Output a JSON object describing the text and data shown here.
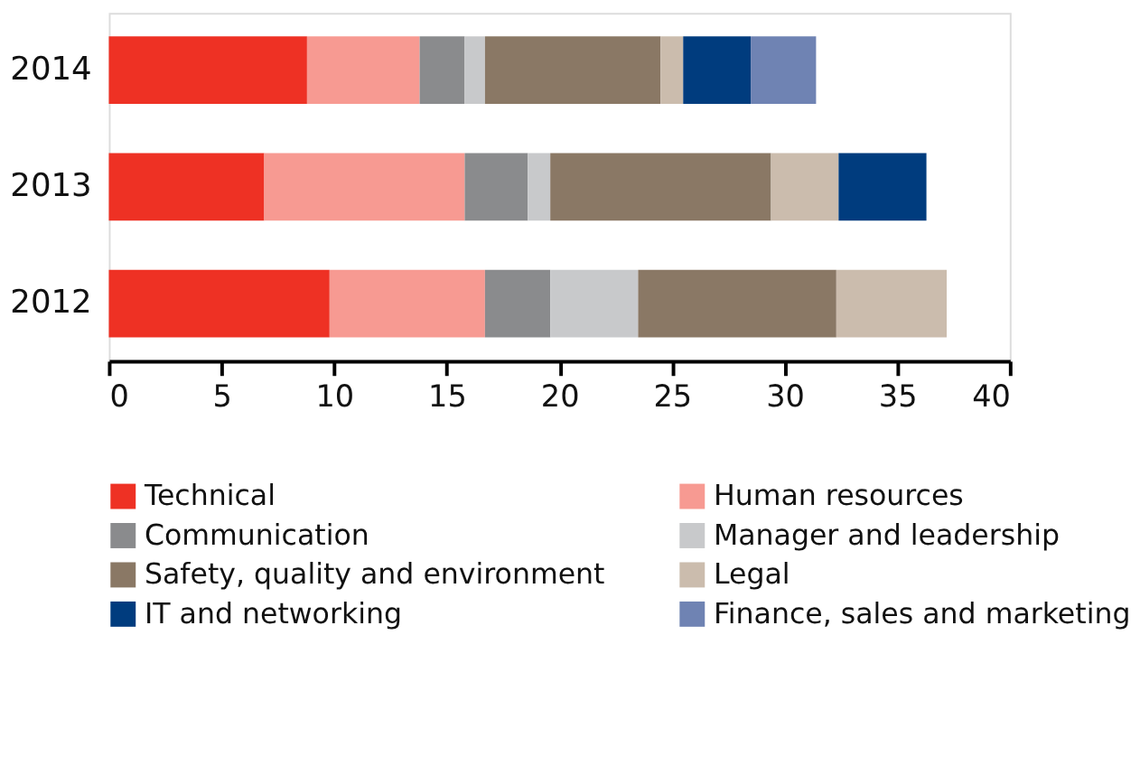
{
  "chart_data": {
    "type": "bar",
    "orientation": "horizontal",
    "stacked": true,
    "categories": [
      "2014",
      "2013",
      "2012"
    ],
    "series": [
      {
        "name": "Technical",
        "color": "#ee3124",
        "values": [
          8.8,
          6.9,
          9.8
        ]
      },
      {
        "name": "Human resources",
        "color": "#f79a92",
        "values": [
          5.0,
          8.9,
          6.9
        ]
      },
      {
        "name": "Communication",
        "color": "#8a8b8d",
        "values": [
          2.0,
          2.8,
          2.9
        ]
      },
      {
        "name": "Manager and leadership",
        "color": "#c8c9cb",
        "values": [
          0.9,
          1.0,
          3.9
        ]
      },
      {
        "name": "Safety, quality and environment",
        "color": "#8a7865",
        "values": [
          7.8,
          9.8,
          8.8
        ]
      },
      {
        "name": "Legal",
        "color": "#cbbcad",
        "values": [
          1.0,
          3.0,
          4.9
        ]
      },
      {
        "name": "IT and networking",
        "color": "#003c7e",
        "values": [
          3.0,
          3.9,
          null
        ]
      },
      {
        "name": "Finance, sales and marketing",
        "color": "#6f83b3",
        "values": [
          2.9,
          null,
          null
        ]
      }
    ],
    "xlim": [
      0,
      40
    ],
    "xticks": [
      0,
      5,
      10,
      15,
      20,
      25,
      30,
      35,
      40
    ],
    "grid": false,
    "legend": "bottom"
  }
}
